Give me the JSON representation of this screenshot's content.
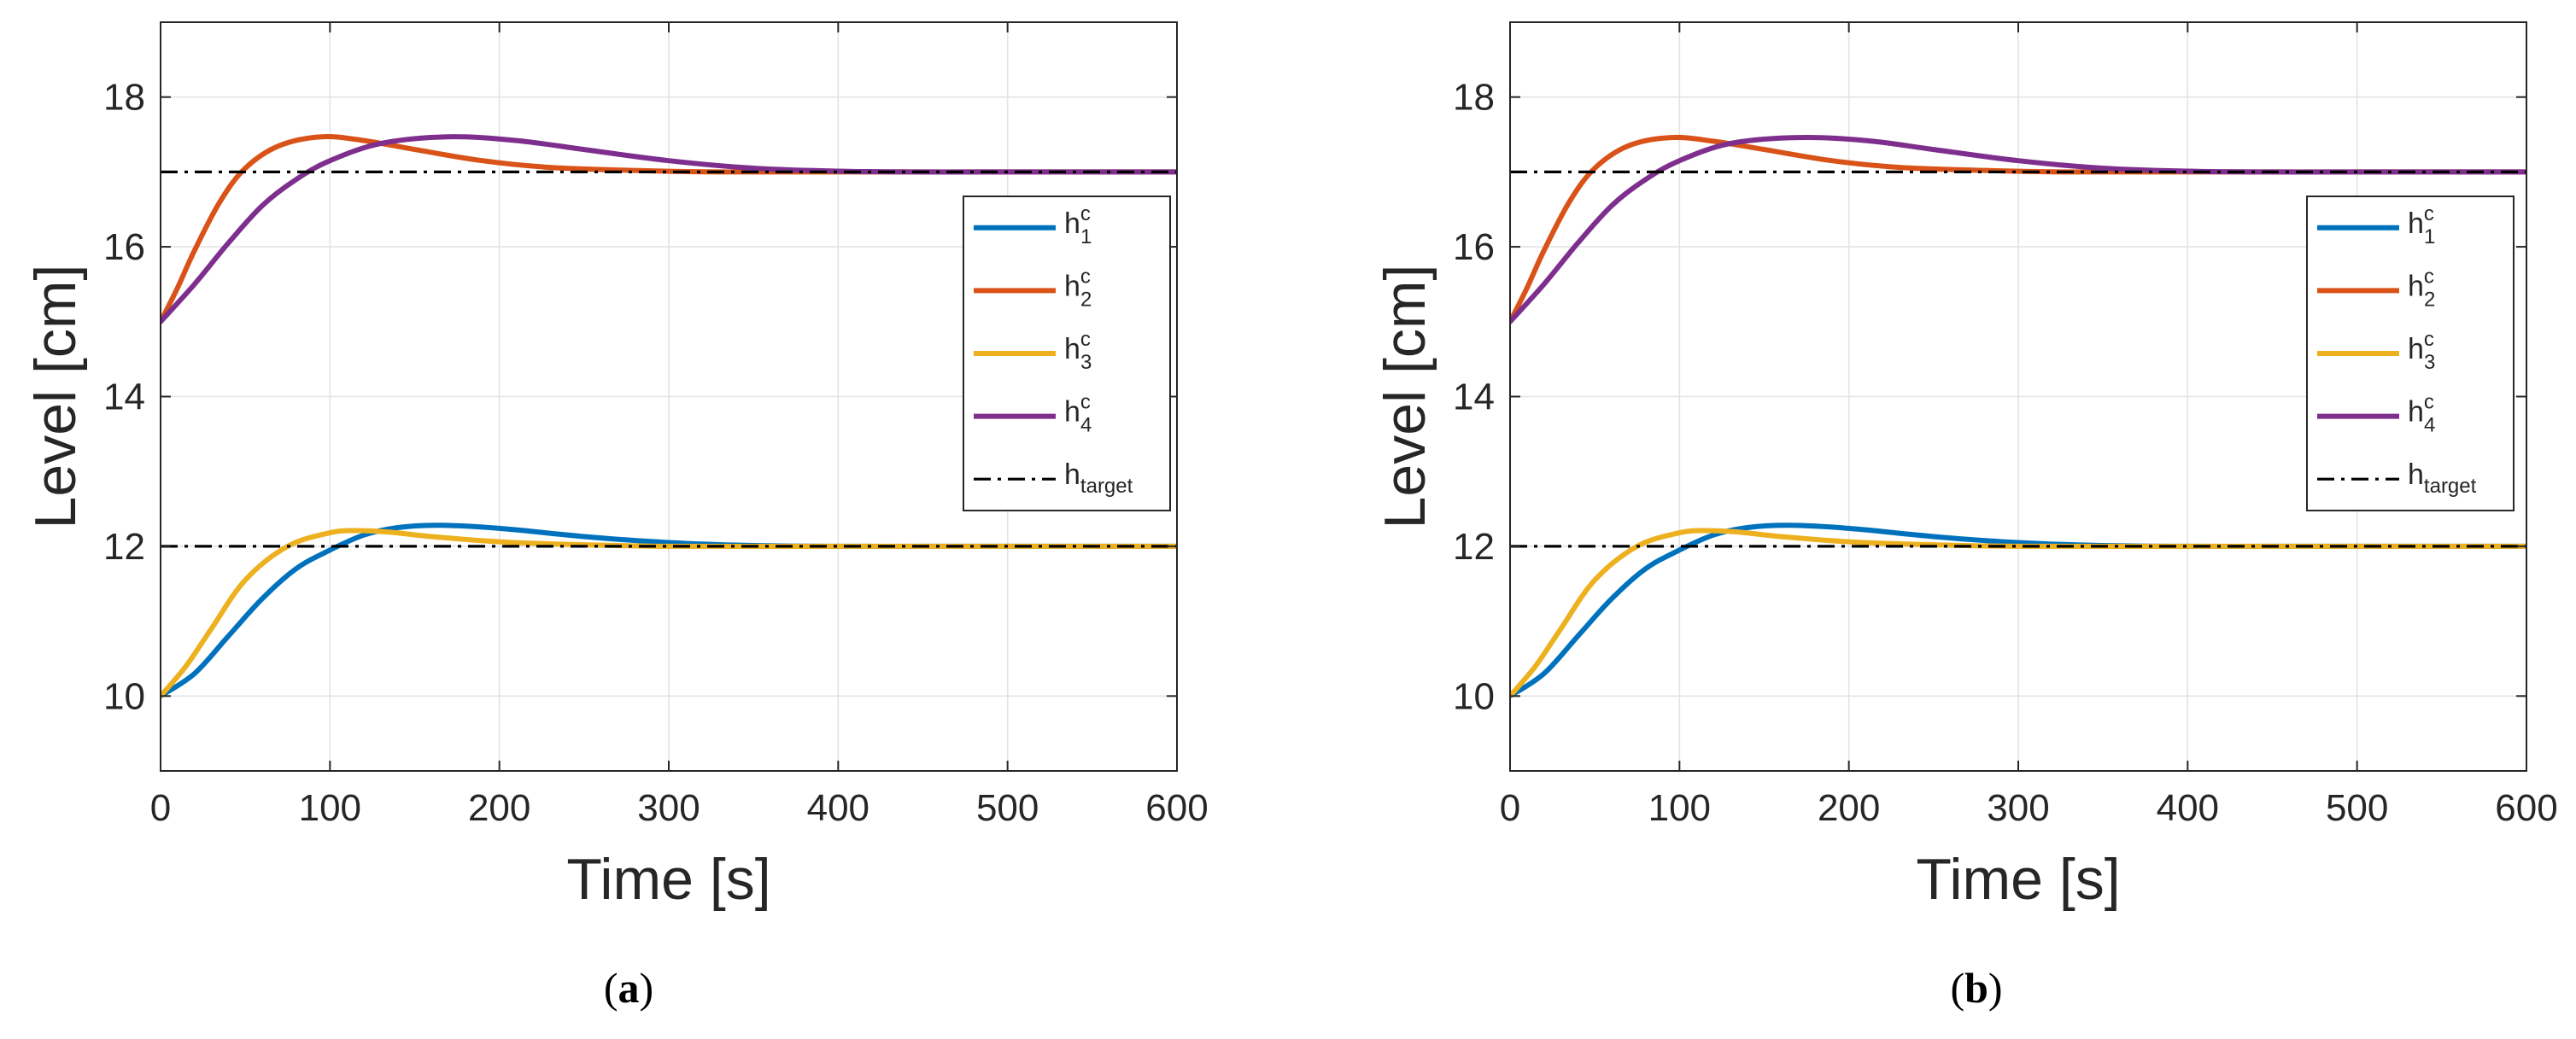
{
  "colors": {
    "h1": "#0072BD",
    "h2": "#D95319",
    "h3": "#EDB120",
    "h4": "#7E2F8E",
    "target": "#000000",
    "grid": "#e3e3e3",
    "axis": "#262626"
  },
  "chart_data": [
    {
      "panel": "a",
      "caption": "(a)",
      "caption_open": "(",
      "caption_letter": "a",
      "caption_close": ")",
      "type": "line",
      "xlabel": "Time [s]",
      "ylabel": "Level [cm]",
      "xlim": [
        0,
        600
      ],
      "ylim": [
        9,
        19
      ],
      "xticks": [
        0,
        100,
        200,
        300,
        400,
        500,
        600
      ],
      "yticks": [
        10,
        12,
        14,
        16,
        18
      ],
      "grid": true,
      "legend_position": "right",
      "series": [
        {
          "key": "h1",
          "base": "h",
          "sub": "1",
          "sup": "c",
          "style": "solid",
          "x": [
            0,
            20,
            40,
            60,
            80,
            100,
            120,
            140,
            165,
            200,
            250,
            300,
            350,
            400,
            450,
            500,
            550,
            600
          ],
          "y": [
            10.0,
            10.3,
            10.8,
            11.3,
            11.7,
            11.95,
            12.15,
            12.25,
            12.28,
            12.24,
            12.13,
            12.05,
            12.01,
            12.0,
            12.0,
            12.0,
            12.0,
            12.0
          ]
        },
        {
          "key": "h2",
          "base": "h",
          "sub": "2",
          "sup": "c",
          "style": "solid",
          "x": [
            0,
            10,
            20,
            35,
            50,
            70,
            95,
            120,
            150,
            190,
            230,
            280,
            330,
            400,
            500,
            600
          ],
          "y": [
            15.0,
            15.45,
            15.95,
            16.6,
            17.05,
            17.35,
            17.47,
            17.42,
            17.3,
            17.15,
            17.06,
            17.02,
            17.0,
            17.0,
            17.0,
            17.0
          ]
        },
        {
          "key": "h3",
          "base": "h",
          "sub": "3",
          "sup": "c",
          "style": "solid",
          "x": [
            0,
            15,
            30,
            50,
            75,
            100,
            115,
            135,
            160,
            200,
            250,
            300,
            400,
            500,
            600
          ],
          "y": [
            10.0,
            10.4,
            10.9,
            11.55,
            12.0,
            12.18,
            12.21,
            12.19,
            12.13,
            12.06,
            12.02,
            12.0,
            12.0,
            12.0,
            12.0
          ]
        },
        {
          "key": "h4",
          "base": "h",
          "sub": "4",
          "sup": "c",
          "style": "solid",
          "x": [
            0,
            20,
            40,
            60,
            80,
            100,
            130,
            170,
            210,
            250,
            300,
            350,
            400,
            450,
            500,
            600
          ],
          "y": [
            15.0,
            15.5,
            16.05,
            16.55,
            16.9,
            17.15,
            17.38,
            17.47,
            17.42,
            17.3,
            17.15,
            17.05,
            17.01,
            17.0,
            17.0,
            17.0
          ]
        },
        {
          "key": "target",
          "base": "h",
          "sub": "target",
          "sup": "",
          "style": "dashdot",
          "segments": [
            {
              "x": [
                0,
                600
              ],
              "y": [
                17,
                17
              ]
            },
            {
              "x": [
                0,
                600
              ],
              "y": [
                12,
                12
              ]
            }
          ]
        }
      ]
    },
    {
      "panel": "b",
      "caption": "(b)",
      "caption_open": "(",
      "caption_letter": "b",
      "caption_close": ")",
      "type": "line",
      "xlabel": "Time [s]",
      "ylabel": "Level [cm]",
      "xlim": [
        0,
        600
      ],
      "ylim": [
        9,
        19
      ],
      "xticks": [
        0,
        100,
        200,
        300,
        400,
        500,
        600
      ],
      "yticks": [
        10,
        12,
        14,
        16,
        18
      ],
      "grid": true,
      "legend_position": "right",
      "series": [
        {
          "key": "h1",
          "base": "h",
          "sub": "1",
          "sup": "c",
          "style": "solid",
          "x": [
            0,
            20,
            40,
            60,
            80,
            100,
            120,
            140,
            165,
            200,
            250,
            300,
            350,
            400,
            450,
            500,
            550,
            600
          ],
          "y": [
            10.0,
            10.3,
            10.8,
            11.3,
            11.7,
            11.95,
            12.15,
            12.25,
            12.28,
            12.24,
            12.13,
            12.05,
            12.01,
            12.0,
            12.0,
            12.0,
            12.0,
            12.0
          ]
        },
        {
          "key": "h2",
          "base": "h",
          "sub": "2",
          "sup": "c",
          "style": "solid",
          "x": [
            0,
            10,
            20,
            35,
            50,
            70,
            95,
            120,
            150,
            190,
            230,
            280,
            330,
            400,
            500,
            600
          ],
          "y": [
            15.0,
            15.45,
            15.95,
            16.6,
            17.05,
            17.35,
            17.46,
            17.41,
            17.3,
            17.15,
            17.06,
            17.02,
            17.0,
            17.0,
            17.0,
            17.0
          ]
        },
        {
          "key": "h3",
          "base": "h",
          "sub": "3",
          "sup": "c",
          "style": "solid",
          "x": [
            0,
            15,
            30,
            50,
            75,
            100,
            115,
            135,
            160,
            200,
            250,
            300,
            400,
            500,
            600
          ],
          "y": [
            10.0,
            10.4,
            10.9,
            11.55,
            12.0,
            12.18,
            12.21,
            12.19,
            12.13,
            12.06,
            12.02,
            12.0,
            12.0,
            12.0,
            12.0
          ]
        },
        {
          "key": "h4",
          "base": "h",
          "sub": "4",
          "sup": "c",
          "style": "solid",
          "x": [
            0,
            20,
            40,
            60,
            80,
            100,
            130,
            170,
            210,
            250,
            300,
            350,
            400,
            450,
            500,
            600
          ],
          "y": [
            15.0,
            15.5,
            16.05,
            16.55,
            16.9,
            17.15,
            17.38,
            17.46,
            17.42,
            17.3,
            17.15,
            17.05,
            17.01,
            17.0,
            17.0,
            17.0
          ]
        },
        {
          "key": "target",
          "base": "h",
          "sub": "target",
          "sup": "",
          "style": "dashdot",
          "segments": [
            {
              "x": [
                0,
                600
              ],
              "y": [
                17,
                17
              ]
            },
            {
              "x": [
                0,
                600
              ],
              "y": [
                12,
                12
              ]
            }
          ]
        }
      ]
    }
  ]
}
